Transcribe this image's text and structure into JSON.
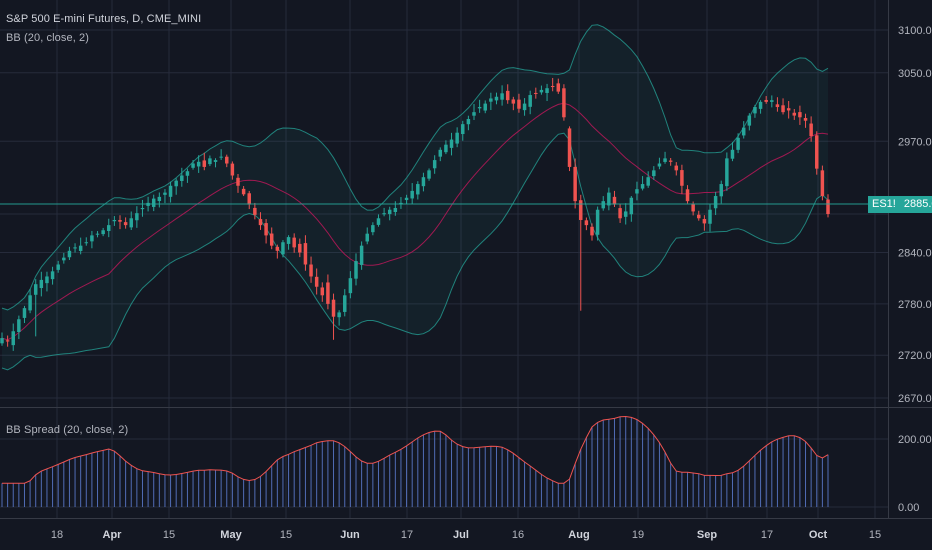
{
  "instrument": {
    "title": "S&P 500 E-mini Futures, D, CME_MINI",
    "symbol": "ES1!",
    "last_price": "2885.00"
  },
  "indicators": {
    "bb_label": "BB (20, close, 2)",
    "spread_label": "BB Spread (20, close, 2)"
  },
  "colors": {
    "background": "#131722",
    "grid": "#262b3b",
    "up": "#26a69a",
    "down": "#ef5350",
    "band": "#26a69a",
    "basis": "#c2185b",
    "hist": "#5d7bd0",
    "spread_line": "#ef5350"
  },
  "chart_data": [
    {
      "type": "candlestick",
      "name": "price",
      "title": "S&P 500 E-mini Futures, D, CME_MINI",
      "y_ticks": [
        "3100.00",
        "3050.00",
        "2970.00",
        "2885.00",
        "2840.00",
        "2780.00",
        "2720.00",
        "2670.00"
      ],
      "y_tick_values": [
        3100,
        3050,
        2970,
        2885,
        2840,
        2780,
        2720,
        2670
      ],
      "x_tick_labels": [
        "18",
        "Apr",
        "15",
        "May",
        "15",
        "Jun",
        "17",
        "Jul",
        "16",
        "Aug",
        "19",
        "Sep",
        "17",
        "Oct",
        "15"
      ],
      "bold_x_ticks": [
        "Apr",
        "May",
        "Jun",
        "Jul",
        "Aug",
        "Sep",
        "Oct"
      ],
      "close": [
        2740,
        2736,
        2748,
        2762,
        2775,
        2790,
        2803,
        2808,
        2812,
        2818,
        2826,
        2834,
        2842,
        2846,
        2848,
        2852,
        2860,
        2862,
        2866,
        2872,
        2878,
        2876,
        2872,
        2880,
        2886,
        2892,
        2898,
        2903,
        2905,
        2910,
        2918,
        2924,
        2930,
        2935,
        2944,
        2946,
        2940,
        2950,
        2948,
        2952,
        2944,
        2930,
        2918,
        2908,
        2896,
        2884,
        2872,
        2860,
        2848,
        2842,
        2852,
        2858,
        2846,
        2840,
        2826,
        2812,
        2800,
        2790,
        2780,
        2765,
        2770,
        2790,
        2810,
        2830,
        2848,
        2862,
        2872,
        2880,
        2886,
        2890,
        2892,
        2898,
        2904,
        2912,
        2920,
        2928,
        2936,
        2948,
        2960,
        2966,
        2972,
        2980,
        2990,
        2996,
        3004,
        3010,
        3014,
        3020,
        3022,
        3026,
        3018,
        3014,
        3008,
        3014,
        3024,
        3026,
        3030,
        3032,
        3034,
        3028,
        2998,
        2940,
        2900,
        2878,
        2872,
        2860,
        2890,
        2900,
        2910,
        2896,
        2880,
        2888,
        2904,
        2914,
        2920,
        2928,
        2936,
        2944,
        2950,
        2946,
        2936,
        2918,
        2900,
        2888,
        2880,
        2874,
        2890,
        2906,
        2920,
        2950,
        2960,
        2974,
        2986,
        3000,
        3010,
        3016,
        3016,
        3018,
        3010,
        3004,
        3006,
        3000,
        2998,
        2994,
        2976,
        2938,
        2906,
        2885
      ],
      "ylim": [
        2650,
        3120
      ]
    },
    {
      "type": "line",
      "name": "bb_spread",
      "title": "BB Spread (20, close, 2)",
      "y_ticks": [
        "200.00",
        "0.00"
      ],
      "y_tick_values": [
        200,
        0
      ],
      "ylim": [
        -20,
        280
      ]
    }
  ]
}
